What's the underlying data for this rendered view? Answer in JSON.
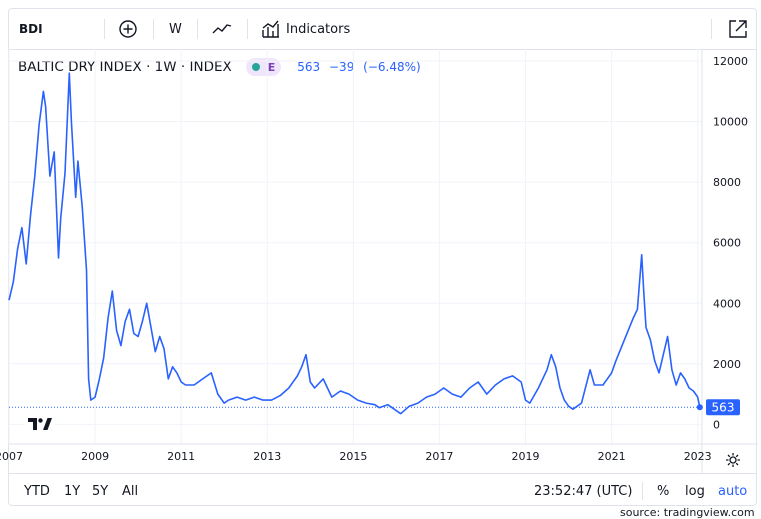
{
  "toolbar": {
    "symbol": "BDI",
    "add_icon": "plus-circle-icon",
    "interval": "W",
    "chart_type_icon": "line-chart-icon",
    "indicators_icon": "indicators-icon",
    "indicators_label": "Indicators",
    "fullscreen_icon": "external-link-icon"
  },
  "legend": {
    "title": "BALTIC DRY INDEX · 1W · INDEX",
    "status_badge": "E",
    "last": "563",
    "change": "−39",
    "change_pct": "(−6.48%)"
  },
  "bottombar": {
    "ranges": [
      "YTD",
      "1Y",
      "5Y",
      "All"
    ],
    "clock": "23:52:47 (UTC)",
    "percent_label": "%",
    "log_label": "log",
    "auto_label": "auto"
  },
  "source": "source: tradingview.com",
  "colors": {
    "line": "#2962ff",
    "price_tag": "#2962ff",
    "grid": "#f0f3fa"
  },
  "chart_data": {
    "type": "line",
    "title": "BALTIC DRY INDEX · 1W · INDEX",
    "xlabel": "",
    "ylabel": "",
    "x_ticks": [
      "2007",
      "2009",
      "2011",
      "2013",
      "2015",
      "2017",
      "2019",
      "2021",
      "2023"
    ],
    "y_ticks": [
      0,
      2000,
      4000,
      6000,
      8000,
      10000,
      12000
    ],
    "xlim": [
      2007.0,
      2023.1
    ],
    "ylim": [
      -650,
      12400
    ],
    "last_value": 563,
    "grid": true,
    "series": [
      {
        "name": "",
        "x": [
          2007.0,
          2007.1,
          2007.2,
          2007.3,
          2007.4,
          2007.5,
          2007.6,
          2007.7,
          2007.8,
          2007.85,
          2007.95,
          2008.05,
          2008.15,
          2008.2,
          2008.3,
          2008.4,
          2008.45,
          2008.55,
          2008.6,
          2008.7,
          2008.8,
          2008.85,
          2008.9,
          2009.0,
          2009.1,
          2009.2,
          2009.3,
          2009.4,
          2009.5,
          2009.6,
          2009.7,
          2009.8,
          2009.9,
          2010.0,
          2010.1,
          2010.2,
          2010.3,
          2010.4,
          2010.5,
          2010.6,
          2010.7,
          2010.8,
          2010.9,
          2011.0,
          2011.1,
          2011.3,
          2011.5,
          2011.7,
          2011.85,
          2012.0,
          2012.1,
          2012.3,
          2012.5,
          2012.7,
          2012.9,
          2013.1,
          2013.3,
          2013.5,
          2013.7,
          2013.8,
          2013.9,
          2014.0,
          2014.1,
          2014.3,
          2014.5,
          2014.7,
          2014.9,
          2015.1,
          2015.3,
          2015.5,
          2015.6,
          2015.8,
          2016.0,
          2016.1,
          2016.3,
          2016.5,
          2016.7,
          2016.9,
          2017.1,
          2017.3,
          2017.5,
          2017.7,
          2017.9,
          2018.1,
          2018.3,
          2018.5,
          2018.7,
          2018.9,
          2019.0,
          2019.1,
          2019.3,
          2019.5,
          2019.6,
          2019.7,
          2019.8,
          2019.9,
          2020.0,
          2020.1,
          2020.3,
          2020.5,
          2020.6,
          2020.8,
          2020.9,
          2021.0,
          2021.1,
          2021.3,
          2021.5,
          2021.6,
          2021.7,
          2021.75,
          2021.8,
          2021.9,
          2022.0,
          2022.1,
          2022.2,
          2022.3,
          2022.4,
          2022.5,
          2022.6,
          2022.7,
          2022.8,
          2022.9,
          2023.0,
          2023.05
        ],
        "values": [
          4100,
          4700,
          5800,
          6500,
          5300,
          6900,
          8200,
          9900,
          11000,
          10500,
          8200,
          9000,
          5500,
          6800,
          8300,
          11600,
          10000,
          7500,
          8700,
          7200,
          5100,
          1500,
          800,
          900,
          1500,
          2200,
          3500,
          4400,
          3100,
          2600,
          3400,
          3800,
          3000,
          2900,
          3400,
          4000,
          3200,
          2400,
          2900,
          2500,
          1500,
          1900,
          1700,
          1400,
          1300,
          1300,
          1500,
          1700,
          1000,
          700,
          800,
          900,
          800,
          900,
          800,
          800,
          950,
          1200,
          1600,
          1900,
          2300,
          1400,
          1200,
          1500,
          900,
          1100,
          1000,
          800,
          700,
          650,
          550,
          650,
          450,
          350,
          600,
          700,
          900,
          1000,
          1200,
          1000,
          900,
          1200,
          1400,
          1000,
          1300,
          1500,
          1600,
          1400,
          800,
          700,
          1200,
          1800,
          2300,
          1900,
          1200,
          800,
          600,
          500,
          700,
          1800,
          1300,
          1300,
          1500,
          1700,
          2100,
          2800,
          3500,
          3800,
          5600,
          4300,
          3200,
          2800,
          2100,
          1700,
          2300,
          2900,
          1800,
          1300,
          1700,
          1500,
          1200,
          1100,
          900,
          563
        ]
      }
    ]
  }
}
